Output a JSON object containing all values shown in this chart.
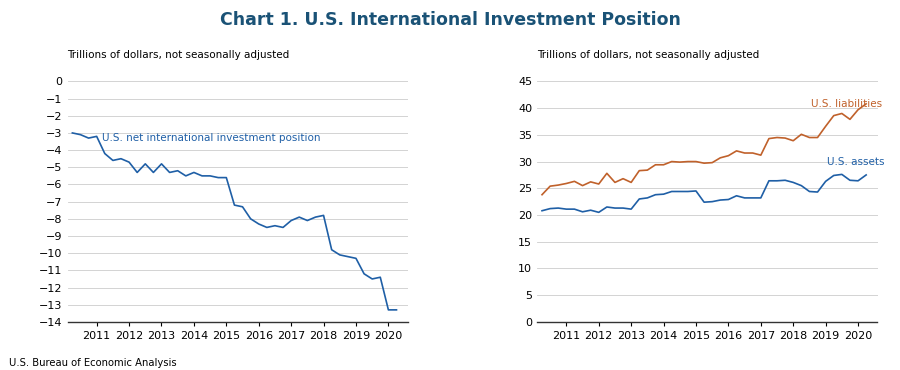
{
  "title": "Chart 1. U.S. International Investment Position",
  "title_color": "#1a5276",
  "title_fontsize": 12.5,
  "source": "U.S. Bureau of Economic Analysis",
  "line_color_blue": "#1f5fa6",
  "line_color_orange": "#c0612b",
  "left_ylabel": "Trillions of dollars, not seasonally adjusted",
  "right_ylabel": "Trillions of dollars, not seasonally adjusted",
  "left_ylim": [
    -14,
    0
  ],
  "left_yticks": [
    0,
    -1,
    -2,
    -3,
    -4,
    -5,
    -6,
    -7,
    -8,
    -9,
    -10,
    -11,
    -12,
    -13,
    -14
  ],
  "right_ylim": [
    0,
    45
  ],
  "right_yticks": [
    0,
    5,
    10,
    15,
    20,
    25,
    30,
    35,
    40,
    45
  ],
  "left_label_text": "U.S. net international investment position",
  "right_label_assets": "U.S. assets",
  "right_label_liabilities": "U.S. liabilities",
  "net_x": [
    2010.25,
    2010.5,
    2010.75,
    2011.0,
    2011.25,
    2011.5,
    2011.75,
    2012.0,
    2012.25,
    2012.5,
    2012.75,
    2013.0,
    2013.25,
    2013.5,
    2013.75,
    2014.0,
    2014.25,
    2014.5,
    2014.75,
    2015.0,
    2015.25,
    2015.5,
    2015.75,
    2016.0,
    2016.25,
    2016.5,
    2016.75,
    2017.0,
    2017.25,
    2017.5,
    2017.75,
    2018.0,
    2018.25,
    2018.5,
    2018.75,
    2019.0,
    2019.25,
    2019.5,
    2019.75,
    2020.0,
    2020.25
  ],
  "net_y": [
    -3.0,
    -3.1,
    -3.3,
    -3.2,
    -4.2,
    -4.6,
    -4.5,
    -4.7,
    -5.3,
    -4.8,
    -5.3,
    -4.8,
    -5.3,
    -5.2,
    -5.5,
    -5.3,
    -5.5,
    -5.5,
    -5.6,
    -5.6,
    -7.2,
    -7.3,
    -8.0,
    -8.3,
    -8.5,
    -8.4,
    -8.5,
    -8.1,
    -7.9,
    -8.1,
    -7.9,
    -7.8,
    -9.8,
    -10.1,
    -10.2,
    -10.3,
    -11.2,
    -11.5,
    -11.4,
    -13.3,
    -13.3
  ],
  "assets_x": [
    2010.25,
    2010.5,
    2010.75,
    2011.0,
    2011.25,
    2011.5,
    2011.75,
    2012.0,
    2012.25,
    2012.5,
    2012.75,
    2013.0,
    2013.25,
    2013.5,
    2013.75,
    2014.0,
    2014.25,
    2014.5,
    2014.75,
    2015.0,
    2015.25,
    2015.5,
    2015.75,
    2016.0,
    2016.25,
    2016.5,
    2016.75,
    2017.0,
    2017.25,
    2017.5,
    2017.75,
    2018.0,
    2018.25,
    2018.5,
    2018.75,
    2019.0,
    2019.25,
    2019.5,
    2019.75,
    2020.0,
    2020.25
  ],
  "assets_y": [
    20.8,
    21.2,
    21.3,
    21.1,
    21.1,
    20.6,
    20.9,
    20.5,
    21.5,
    21.3,
    21.3,
    21.1,
    23.0,
    23.2,
    23.8,
    23.9,
    24.4,
    24.4,
    24.4,
    24.5,
    22.4,
    22.5,
    22.8,
    22.9,
    23.6,
    23.2,
    23.2,
    23.2,
    26.4,
    26.4,
    26.5,
    26.1,
    25.5,
    24.4,
    24.3,
    26.3,
    27.4,
    27.6,
    26.5,
    26.4,
    27.5
  ],
  "liabilities_x": [
    2010.25,
    2010.5,
    2010.75,
    2011.0,
    2011.25,
    2011.5,
    2011.75,
    2012.0,
    2012.25,
    2012.5,
    2012.75,
    2013.0,
    2013.25,
    2013.5,
    2013.75,
    2014.0,
    2014.25,
    2014.5,
    2014.75,
    2015.0,
    2015.25,
    2015.5,
    2015.75,
    2016.0,
    2016.25,
    2016.5,
    2016.75,
    2017.0,
    2017.25,
    2017.5,
    2017.75,
    2018.0,
    2018.25,
    2018.5,
    2018.75,
    2019.0,
    2019.25,
    2019.5,
    2019.75,
    2020.0,
    2020.25
  ],
  "liabilities_y": [
    23.8,
    25.4,
    25.6,
    25.9,
    26.3,
    25.5,
    26.2,
    25.8,
    27.8,
    26.1,
    26.8,
    26.1,
    28.3,
    28.4,
    29.4,
    29.4,
    30.0,
    29.9,
    30.0,
    30.0,
    29.7,
    29.8,
    30.7,
    31.1,
    32.0,
    31.6,
    31.6,
    31.2,
    34.3,
    34.5,
    34.4,
    33.9,
    35.1,
    34.5,
    34.5,
    36.6,
    38.6,
    39.0,
    37.9,
    39.7,
    40.8
  ]
}
